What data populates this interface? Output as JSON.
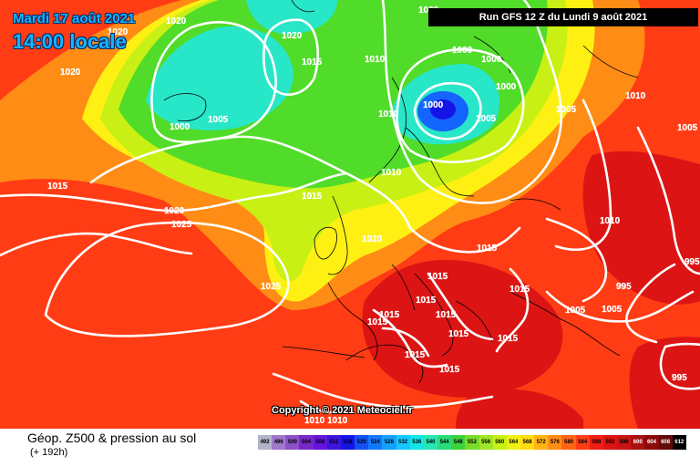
{
  "header": {
    "date_line": "Mardi 17 août 2021",
    "time_line": "14:00 locale",
    "run_banner": "Run GFS 12 Z du Lundi 9 août 2021"
  },
  "copyright": "Copyright © 2021 Meteociel.fr",
  "footer": {
    "title": "Géop. Z500 & pression au sol",
    "subtitle": "(+ 192h)"
  },
  "colors": {
    "ocean_red": "#ff3c14",
    "orange": "#ff8c14",
    "yellow": "#fff014",
    "light_green": "#c8f014",
    "green": "#50dc28",
    "cyan": "#28e6c8",
    "blue": "#1464ff",
    "dark_red": "#dc1414",
    "isobar": "#ffffff"
  },
  "pressure_labels": [
    "1000",
    "1000",
    "1000",
    "1000",
    "1000",
    "1000",
    "1005",
    "1005",
    "1005",
    "1005",
    "1005",
    "1005",
    "1010",
    "1010",
    "1010",
    "1010",
    "1010",
    "1010",
    "1010",
    "1015",
    "1015",
    "1015",
    "1015",
    "1015",
    "1015",
    "1015",
    "1015",
    "1015",
    "1015",
    "1015",
    "1015",
    "1015",
    "1015",
    "1020",
    "1020",
    "1020",
    "1020",
    "1020",
    "1020",
    "1025",
    "1025",
    "995",
    "995",
    "995"
  ],
  "scale": {
    "labels": [
      "492",
      "496",
      "500",
      "504",
      "508",
      "512",
      "516",
      "520",
      "524",
      "528",
      "532",
      "536",
      "540",
      "544",
      "548",
      "552",
      "556",
      "560",
      "564",
      "568",
      "572",
      "576",
      "580",
      "584",
      "588",
      "592",
      "596",
      "600",
      "604",
      "608",
      "612"
    ],
    "colors": [
      "#b4b4c8",
      "#a078c8",
      "#8c50c8",
      "#7828c8",
      "#6414dc",
      "#3c14dc",
      "#1414e6",
      "#1450f0",
      "#1478ff",
      "#14a0ff",
      "#14c8ff",
      "#14e6e6",
      "#28e6b4",
      "#28dc78",
      "#3cd23c",
      "#78dc28",
      "#a0e628",
      "#c8f014",
      "#f0f014",
      "#ffdc14",
      "#ffb414",
      "#ff8c14",
      "#ff6414",
      "#ff3c14",
      "#f01e14",
      "#dc1414",
      "#c81414",
      "#aa1010",
      "#8c0a0a",
      "#640a0a",
      "#000000"
    ]
  }
}
